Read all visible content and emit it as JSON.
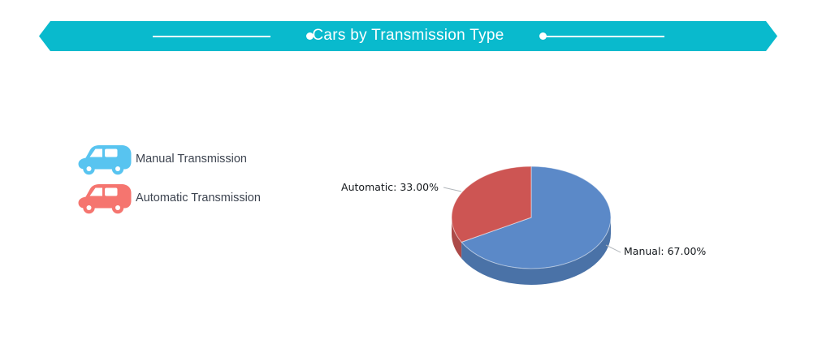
{
  "page": {
    "background_color": "#ffffff"
  },
  "banner": {
    "title": "Cars by Transmission Type",
    "background_color": "#09bacd",
    "text_color": "#ffffff"
  },
  "legend": {
    "items": [
      {
        "label": "Manual Transmission",
        "icon": "car-icon",
        "color": "#58c4f0"
      },
      {
        "label": "Automatic Transmission",
        "icon": "car-icon",
        "color": "#f5756f"
      }
    ],
    "text_color": "#3d4450"
  },
  "chart_data": {
    "type": "pie",
    "is_3d": true,
    "title": "Cars by Transmission Type",
    "unit": "%",
    "start_angle": "12 o'clock",
    "direction": "clockwise",
    "legend_position": "left",
    "slices": [
      {
        "label": "Manual",
        "value": 67.0,
        "display_label": "Manual: 67.00%",
        "color": "#5b89c8",
        "side_color": "#4a72a7"
      },
      {
        "label": "Automatic",
        "value": 33.0,
        "display_label": "Automatic: 33.00%",
        "color": "#cd5553",
        "side_color": "#ac4a48"
      }
    ],
    "leader_line_color": "#b0b5ba"
  }
}
